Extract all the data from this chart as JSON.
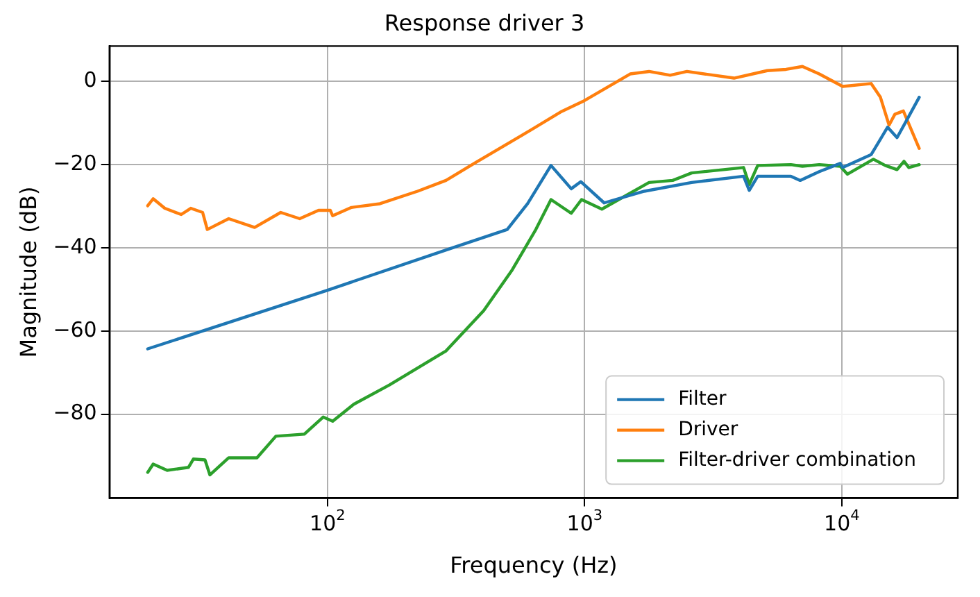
{
  "chart_data": {
    "type": "line",
    "title": "Response driver 3",
    "xlabel": "Frequency (Hz)",
    "ylabel": "Magnitude (dB)",
    "log": "x",
    "xlim": [
      14.2,
      28250
    ],
    "xticks": [
      {
        "value": 100,
        "label": "10$^{2}$"
      },
      {
        "value": 1000,
        "label": "10$^{3}$"
      },
      {
        "value": 10000,
        "label": "10$^{4}$"
      }
    ],
    "ylim": [
      -100.2,
      8.5
    ],
    "yticks": [
      -80,
      -60,
      -40,
      -20,
      0
    ],
    "grid": true,
    "legend": "bottom right",
    "line_style": "solid",
    "marker": "none",
    "series": [
      {
        "name": "Filter",
        "color": "#1f77b4",
        "x": [
          20,
          100,
          300,
          500,
          600,
          740,
          887,
          966,
          1191,
          1706,
          2607,
          4150,
          4365,
          4710,
          6340,
          6890,
          8170,
          9860,
          10080,
          13000,
          15070,
          16400,
          17850,
          20000
        ],
        "values": [
          -64.3,
          -50.2,
          -40.2,
          -35.6,
          -29.4,
          -20.2,
          -25.8,
          -24.1,
          -29.2,
          -26.4,
          -24.3,
          -22.8,
          -26.2,
          -22.8,
          -22.8,
          -23.8,
          -21.7,
          -19.7,
          -20.7,
          -17.6,
          -11,
          -13.5,
          -9.4,
          -3.8
        ]
      },
      {
        "name": "Driver",
        "color": "#ff7f0e",
        "x": [
          20,
          21,
          23.3,
          27,
          29.4,
          32.7,
          34.1,
          41.3,
          52.1,
          65.8,
          78,
          92.3,
          102.6,
          104.8,
          124,
          160,
          224,
          289,
          372,
          569,
          815,
          985,
          1503,
          1780,
          2150,
          2500,
          3810,
          5130,
          6070,
          7030,
          8170,
          10080,
          13000,
          14130,
          15270,
          16080,
          17350,
          20000
        ],
        "values": [
          -29.9,
          -28.2,
          -30.5,
          -32,
          -30.5,
          -31.5,
          -35.6,
          -33,
          -35.1,
          -31.5,
          -33,
          -31,
          -31,
          -32.3,
          -30.3,
          -29.4,
          -26.4,
          -23.8,
          -19.7,
          -13,
          -7.2,
          -4.8,
          1.8,
          2.4,
          1.5,
          2.4,
          0.8,
          2.6,
          2.9,
          3.6,
          1.8,
          -1.2,
          -0.5,
          -3.8,
          -10.5,
          -7.9,
          -7.1,
          -16.1
        ]
      },
      {
        "name": "Filter-driver combination",
        "color": "#2ca02c",
        "x": [
          20,
          21,
          23.8,
          28.8,
          30.1,
          33.4,
          34.9,
          41.3,
          53.2,
          63,
          81.3,
          96.2,
          104.8,
          126.7,
          174,
          289,
          405,
          523,
          646,
          740,
          887,
          973,
          1167,
          1780,
          2200,
          2607,
          4150,
          4365,
          4710,
          6340,
          7030,
          8170,
          9860,
          10520,
          13270,
          14760,
          16400,
          17450,
          18220,
          20000
        ],
        "values": [
          -94,
          -92,
          -93.5,
          -92.8,
          -90.8,
          -91,
          -94.6,
          -90.5,
          -90.5,
          -85.3,
          -84.8,
          -80.7,
          -81.7,
          -77.6,
          -73,
          -64.8,
          -55.1,
          -45.3,
          -35.6,
          -28.4,
          -31.7,
          -28.4,
          -30.7,
          -24.3,
          -23.8,
          -22,
          -20.7,
          -24.8,
          -20.2,
          -20,
          -20.4,
          -20,
          -20.4,
          -22.3,
          -18.7,
          -20.2,
          -21.2,
          -19.2,
          -20.7,
          -20
        ]
      }
    ]
  }
}
